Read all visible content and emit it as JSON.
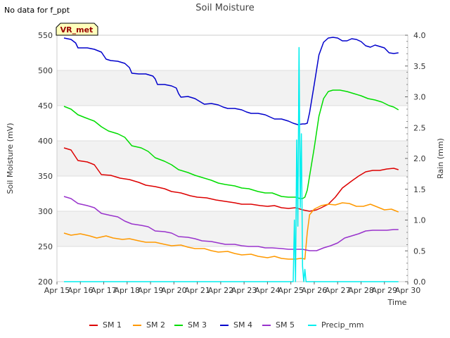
{
  "chart_data": {
    "type": "line",
    "title": "Soil Moisture",
    "no_data_note": "No data for f_ppt",
    "site_badge": "VR_met",
    "xlabel": "Time",
    "ylabel_left": "Soil Moisture (mV)",
    "ylabel_right": "Rain (mm)",
    "xlim": [
      15,
      30
    ],
    "ylim_left": [
      200,
      550
    ],
    "ylim_right": [
      0,
      4.0
    ],
    "x_ticks": [
      {
        "value": 15,
        "label": "Apr 15"
      },
      {
        "value": 16,
        "label": "Apr 16"
      },
      {
        "value": 17,
        "label": "Apr 17"
      },
      {
        "value": 18,
        "label": "Apr 18"
      },
      {
        "value": 19,
        "label": "Apr 19"
      },
      {
        "value": 20,
        "label": "Apr 20"
      },
      {
        "value": 21,
        "label": "Apr 21"
      },
      {
        "value": 22,
        "label": "Apr 22"
      },
      {
        "value": 23,
        "label": "Apr 23"
      },
      {
        "value": 24,
        "label": "Apr 24"
      },
      {
        "value": 25,
        "label": "Apr 25"
      },
      {
        "value": 26,
        "label": "Apr 26"
      },
      {
        "value": 27,
        "label": "Apr 27"
      },
      {
        "value": 28,
        "label": "Apr 28"
      },
      {
        "value": 29,
        "label": "Apr 29"
      },
      {
        "value": 30,
        "label": "Apr 30"
      }
    ],
    "y_ticks_left": [
      200,
      250,
      300,
      350,
      400,
      450,
      500,
      550
    ],
    "y_ticks_left_labels": [
      "200",
      "250",
      "300",
      "350",
      "400",
      "450",
      "500",
      "550"
    ],
    "y_ticks_right": [
      0,
      0.5,
      1.0,
      1.5,
      2.0,
      2.5,
      3.0,
      3.5,
      4.0
    ],
    "y_ticks_right_labels": [
      "0.0",
      "0.5",
      "1.0",
      "1.5",
      "2.0",
      "2.5",
      "3.0",
      "3.5",
      "4.0"
    ],
    "series": [
      {
        "name": "SM 1",
        "color": "#dd0000",
        "axis": "left",
        "points": [
          [
            15.3,
            390
          ],
          [
            15.6,
            387
          ],
          [
            15.9,
            372
          ],
          [
            16.3,
            370
          ],
          [
            16.6,
            366
          ],
          [
            16.9,
            352
          ],
          [
            17.3,
            351
          ],
          [
            17.7,
            347
          ],
          [
            18.1,
            345
          ],
          [
            18.5,
            341
          ],
          [
            18.8,
            337
          ],
          [
            19.2,
            335
          ],
          [
            19.6,
            332
          ],
          [
            19.9,
            328
          ],
          [
            20.3,
            326
          ],
          [
            20.7,
            322
          ],
          [
            21.0,
            320
          ],
          [
            21.4,
            319
          ],
          [
            21.8,
            316
          ],
          [
            22.2,
            314
          ],
          [
            22.6,
            312
          ],
          [
            22.9,
            310
          ],
          [
            23.3,
            310
          ],
          [
            23.7,
            308
          ],
          [
            24.0,
            307
          ],
          [
            24.3,
            308
          ],
          [
            24.6,
            305
          ],
          [
            24.9,
            304
          ],
          [
            25.2,
            305
          ],
          [
            25.5,
            302
          ],
          [
            25.8,
            300
          ],
          [
            26.1,
            302
          ],
          [
            26.3,
            305
          ],
          [
            26.6,
            310
          ],
          [
            26.9,
            320
          ],
          [
            27.2,
            333
          ],
          [
            27.6,
            343
          ],
          [
            27.9,
            350
          ],
          [
            28.2,
            356
          ],
          [
            28.5,
            358
          ],
          [
            28.8,
            358
          ],
          [
            29.1,
            360
          ],
          [
            29.4,
            361
          ],
          [
            29.6,
            359
          ]
        ]
      },
      {
        "name": "SM 2",
        "color": "#ff9900",
        "axis": "left",
        "points": [
          [
            15.3,
            269
          ],
          [
            15.6,
            266
          ],
          [
            16.0,
            268
          ],
          [
            16.4,
            265
          ],
          [
            16.7,
            262
          ],
          [
            17.1,
            265
          ],
          [
            17.4,
            262
          ],
          [
            17.8,
            260
          ],
          [
            18.1,
            261
          ],
          [
            18.5,
            258
          ],
          [
            18.8,
            256
          ],
          [
            19.2,
            256
          ],
          [
            19.6,
            253
          ],
          [
            19.9,
            251
          ],
          [
            20.3,
            252
          ],
          [
            20.6,
            249
          ],
          [
            20.9,
            247
          ],
          [
            21.3,
            247
          ],
          [
            21.6,
            244
          ],
          [
            21.9,
            242
          ],
          [
            22.3,
            243
          ],
          [
            22.6,
            240
          ],
          [
            22.9,
            238
          ],
          [
            23.3,
            239
          ],
          [
            23.6,
            236
          ],
          [
            24.0,
            234
          ],
          [
            24.3,
            236
          ],
          [
            24.6,
            233
          ],
          [
            24.9,
            232
          ],
          [
            25.2,
            232
          ],
          [
            25.4,
            233
          ],
          [
            25.5,
            233
          ],
          [
            25.6,
            232
          ],
          [
            25.7,
            270
          ],
          [
            25.8,
            295
          ],
          [
            26.0,
            303
          ],
          [
            26.3,
            308
          ],
          [
            26.6,
            310
          ],
          [
            26.9,
            309
          ],
          [
            27.2,
            312
          ],
          [
            27.5,
            311
          ],
          [
            27.8,
            307
          ],
          [
            28.1,
            307
          ],
          [
            28.4,
            310
          ],
          [
            28.7,
            306
          ],
          [
            29.0,
            302
          ],
          [
            29.3,
            303
          ],
          [
            29.6,
            299
          ]
        ]
      },
      {
        "name": "SM 3",
        "color": "#00dd00",
        "axis": "left",
        "points": [
          [
            15.3,
            449
          ],
          [
            15.6,
            445
          ],
          [
            15.9,
            437
          ],
          [
            16.2,
            433
          ],
          [
            16.6,
            428
          ],
          [
            16.9,
            420
          ],
          [
            17.2,
            414
          ],
          [
            17.6,
            410
          ],
          [
            17.9,
            405
          ],
          [
            18.2,
            393
          ],
          [
            18.6,
            390
          ],
          [
            18.9,
            385
          ],
          [
            19.2,
            376
          ],
          [
            19.6,
            371
          ],
          [
            19.9,
            366
          ],
          [
            20.2,
            359
          ],
          [
            20.6,
            355
          ],
          [
            20.9,
            351
          ],
          [
            21.2,
            348
          ],
          [
            21.6,
            344
          ],
          [
            21.9,
            340
          ],
          [
            22.2,
            338
          ],
          [
            22.6,
            336
          ],
          [
            22.9,
            333
          ],
          [
            23.2,
            332
          ],
          [
            23.6,
            328
          ],
          [
            23.9,
            326
          ],
          [
            24.2,
            326
          ],
          [
            24.6,
            321
          ],
          [
            24.9,
            320
          ],
          [
            25.2,
            320
          ],
          [
            25.4,
            318
          ],
          [
            25.5,
            318
          ],
          [
            25.6,
            320
          ],
          [
            25.7,
            330
          ],
          [
            25.8,
            350
          ],
          [
            26.0,
            390
          ],
          [
            26.2,
            435
          ],
          [
            26.4,
            460
          ],
          [
            26.6,
            470
          ],
          [
            26.8,
            472
          ],
          [
            27.1,
            472
          ],
          [
            27.4,
            470
          ],
          [
            27.7,
            467
          ],
          [
            28.0,
            464
          ],
          [
            28.3,
            460
          ],
          [
            28.6,
            458
          ],
          [
            28.9,
            455
          ],
          [
            29.2,
            450
          ],
          [
            29.4,
            448
          ],
          [
            29.6,
            444
          ]
        ]
      },
      {
        "name": "SM 4",
        "color": "#0000cc",
        "axis": "left",
        "points": [
          [
            15.3,
            546
          ],
          [
            15.6,
            544
          ],
          [
            15.8,
            539
          ],
          [
            15.9,
            532
          ],
          [
            16.3,
            532
          ],
          [
            16.6,
            530
          ],
          [
            16.9,
            526
          ],
          [
            17.1,
            516
          ],
          [
            17.3,
            514
          ],
          [
            17.6,
            513
          ],
          [
            17.9,
            510
          ],
          [
            18.1,
            504
          ],
          [
            18.2,
            496
          ],
          [
            18.5,
            495
          ],
          [
            18.8,
            495
          ],
          [
            19.1,
            492
          ],
          [
            19.2,
            488
          ],
          [
            19.3,
            480
          ],
          [
            19.6,
            480
          ],
          [
            19.9,
            478
          ],
          [
            20.1,
            475
          ],
          [
            20.2,
            467
          ],
          [
            20.3,
            462
          ],
          [
            20.6,
            463
          ],
          [
            20.9,
            460
          ],
          [
            21.1,
            456
          ],
          [
            21.3,
            452
          ],
          [
            21.6,
            453
          ],
          [
            21.9,
            451
          ],
          [
            22.1,
            448
          ],
          [
            22.3,
            446
          ],
          [
            22.6,
            446
          ],
          [
            22.9,
            444
          ],
          [
            23.1,
            441
          ],
          [
            23.3,
            439
          ],
          [
            23.6,
            439
          ],
          [
            23.9,
            437
          ],
          [
            24.1,
            434
          ],
          [
            24.3,
            431
          ],
          [
            24.6,
            431
          ],
          [
            24.9,
            428
          ],
          [
            25.1,
            425
          ],
          [
            25.3,
            423
          ],
          [
            25.5,
            424
          ],
          [
            25.6,
            424
          ],
          [
            25.7,
            425
          ],
          [
            25.8,
            440
          ],
          [
            26.0,
            480
          ],
          [
            26.2,
            522
          ],
          [
            26.4,
            540
          ],
          [
            26.6,
            546
          ],
          [
            26.8,
            547
          ],
          [
            27.0,
            546
          ],
          [
            27.2,
            542
          ],
          [
            27.4,
            542
          ],
          [
            27.6,
            545
          ],
          [
            27.8,
            544
          ],
          [
            28.0,
            541
          ],
          [
            28.2,
            535
          ],
          [
            28.4,
            533
          ],
          [
            28.6,
            536
          ],
          [
            28.8,
            534
          ],
          [
            29.0,
            532
          ],
          [
            29.2,
            525
          ],
          [
            29.4,
            524
          ],
          [
            29.6,
            525
          ]
        ]
      },
      {
        "name": "SM 5",
        "color": "#9933cc",
        "axis": "left",
        "points": [
          [
            15.3,
            321
          ],
          [
            15.6,
            318
          ],
          [
            15.9,
            311
          ],
          [
            16.3,
            308
          ],
          [
            16.6,
            305
          ],
          [
            16.9,
            297
          ],
          [
            17.3,
            294
          ],
          [
            17.6,
            292
          ],
          [
            17.9,
            286
          ],
          [
            18.2,
            282
          ],
          [
            18.6,
            280
          ],
          [
            18.9,
            278
          ],
          [
            19.2,
            272
          ],
          [
            19.6,
            271
          ],
          [
            19.9,
            269
          ],
          [
            20.2,
            264
          ],
          [
            20.6,
            263
          ],
          [
            20.9,
            261
          ],
          [
            21.2,
            258
          ],
          [
            21.6,
            257
          ],
          [
            21.9,
            255
          ],
          [
            22.2,
            253
          ],
          [
            22.6,
            253
          ],
          [
            22.9,
            251
          ],
          [
            23.2,
            250
          ],
          [
            23.6,
            250
          ],
          [
            23.9,
            248
          ],
          [
            24.2,
            248
          ],
          [
            24.6,
            247
          ],
          [
            24.9,
            246
          ],
          [
            25.2,
            246
          ],
          [
            25.5,
            246
          ],
          [
            25.8,
            244
          ],
          [
            26.1,
            244
          ],
          [
            26.4,
            248
          ],
          [
            26.7,
            251
          ],
          [
            27.0,
            255
          ],
          [
            27.3,
            262
          ],
          [
            27.6,
            265
          ],
          [
            27.9,
            268
          ],
          [
            28.2,
            272
          ],
          [
            28.5,
            273
          ],
          [
            28.8,
            273
          ],
          [
            29.1,
            273
          ],
          [
            29.4,
            274
          ],
          [
            29.6,
            274
          ]
        ]
      },
      {
        "name": "Precip_mm",
        "color": "#00eeee",
        "axis": "right",
        "points": [
          [
            15.3,
            0
          ],
          [
            25.1,
            0
          ],
          [
            25.15,
            1.0
          ],
          [
            25.2,
            0
          ],
          [
            25.25,
            2.3
          ],
          [
            25.3,
            0.9
          ],
          [
            25.35,
            3.8
          ],
          [
            25.4,
            1.2
          ],
          [
            25.45,
            2.4
          ],
          [
            25.5,
            0.25
          ],
          [
            25.55,
            0
          ],
          [
            25.6,
            0.2
          ],
          [
            25.65,
            0
          ],
          [
            29.6,
            0
          ]
        ]
      }
    ]
  }
}
